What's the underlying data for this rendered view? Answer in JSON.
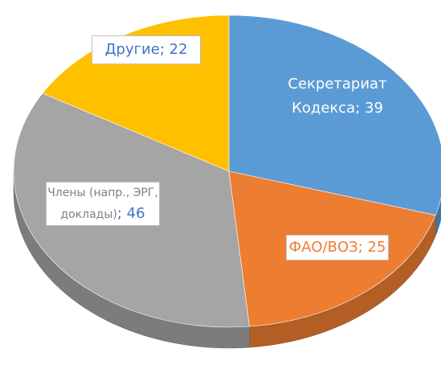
{
  "chart_data": {
    "type": "pie",
    "categories": [
      "Секретариат Кодекса",
      "ФАО/ВОЗ",
      "Члены (напр., ЭРГ, доклады)",
      "Другие"
    ],
    "values": [
      39,
      25,
      46,
      22
    ],
    "value_labels": [
      "; 39",
      "; 25",
      "; 46",
      "; 22"
    ],
    "colors": [
      "#5b9bd5",
      "#ed7d31",
      "#a5a5a5",
      "#ffc000"
    ]
  }
}
